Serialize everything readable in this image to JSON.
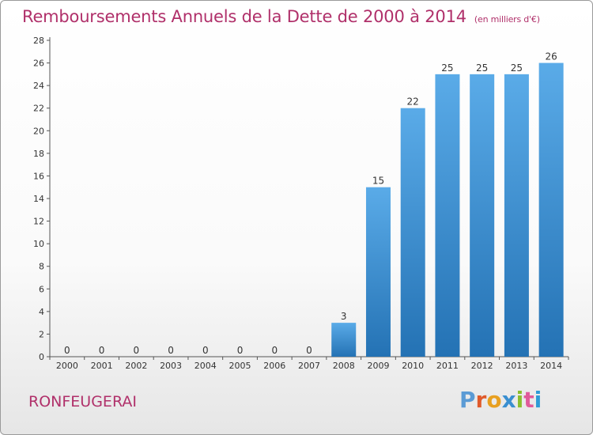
{
  "header": {
    "title": "Remboursements Annuels de la Dette de 2000 à 2014",
    "unit": "(en milliers d'€)"
  },
  "footer": {
    "commune": "RONFEUGERAI",
    "logo": {
      "text": "Proxiti",
      "letter_colors": [
        "#5b9bd5",
        "#e05a2b",
        "#e8a020",
        "#3a8fd0",
        "#8bbf2e",
        "#e05a9a",
        "#2d9bd6"
      ]
    }
  },
  "colors": {
    "title": "#b0306a",
    "bar_light": "#5aabe8",
    "bar_dark": "#2472b4"
  },
  "chart_data": {
    "type": "bar",
    "title": "Remboursements Annuels de la Dette de 2000 à 2014",
    "categories": [
      "2000",
      "2001",
      "2002",
      "2003",
      "2004",
      "2005",
      "2006",
      "2007",
      "2008",
      "2009",
      "2010",
      "2011",
      "2012",
      "2013",
      "2014"
    ],
    "values": [
      0,
      0,
      0,
      0,
      0,
      0,
      0,
      0,
      3,
      15,
      22,
      25,
      25,
      25,
      26
    ],
    "ylim": [
      0,
      28
    ],
    "yticks": [
      0,
      2,
      4,
      6,
      8,
      10,
      12,
      14,
      16,
      18,
      20,
      22,
      24,
      26,
      28
    ],
    "grid": false,
    "data_labels": true,
    "xlabel": "",
    "ylabel": ""
  }
}
